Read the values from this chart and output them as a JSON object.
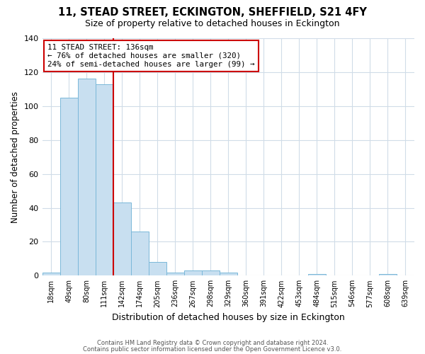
{
  "title": "11, STEAD STREET, ECKINGTON, SHEFFIELD, S21 4FY",
  "subtitle": "Size of property relative to detached houses in Eckington",
  "xlabel": "Distribution of detached houses by size in Eckington",
  "ylabel": "Number of detached properties",
  "bar_labels": [
    "18sqm",
    "49sqm",
    "80sqm",
    "111sqm",
    "142sqm",
    "174sqm",
    "205sqm",
    "236sqm",
    "267sqm",
    "298sqm",
    "329sqm",
    "360sqm",
    "391sqm",
    "422sqm",
    "453sqm",
    "484sqm",
    "515sqm",
    "546sqm",
    "577sqm",
    "608sqm",
    "639sqm"
  ],
  "bar_values": [
    2,
    105,
    116,
    113,
    43,
    26,
    8,
    2,
    3,
    3,
    2,
    0,
    0,
    0,
    0,
    1,
    0,
    0,
    0,
    1,
    0
  ],
  "bar_color": "#c8dff0",
  "bar_edge_color": "#7ab8d9",
  "vline_color": "#cc0000",
  "annotation_line1": "11 STEAD STREET: 136sqm",
  "annotation_line2": "← 76% of detached houses are smaller (320)",
  "annotation_line3": "24% of semi-detached houses are larger (99) →",
  "annotation_box_edge_color": "#cc0000",
  "ylim": [
    0,
    140
  ],
  "yticks": [
    0,
    20,
    40,
    60,
    80,
    100,
    120,
    140
  ],
  "footer_line1": "Contains HM Land Registry data © Crown copyright and database right 2024.",
  "footer_line2": "Contains public sector information licensed under the Open Government Licence v3.0.",
  "background_color": "#ffffff",
  "plot_background_color": "#ffffff",
  "grid_color": "#d0dce8",
  "vline_bar_index": 4
}
